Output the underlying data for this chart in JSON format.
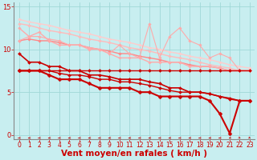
{
  "bg_color": "#c8eef0",
  "grid_color": "#a0d8d8",
  "xlabel": "Vent moyen/en rafales ( km/h )",
  "xlabel_color": "#cc0000",
  "xlabel_fontsize": 7.5,
  "tick_color": "#cc0000",
  "tick_fontsize": 5.5,
  "xlim": [
    -0.5,
    23.5
  ],
  "ylim": [
    -0.5,
    15.5
  ],
  "yticks": [
    0,
    5,
    10,
    15
  ],
  "xticks": [
    0,
    1,
    2,
    3,
    4,
    5,
    6,
    7,
    8,
    9,
    10,
    11,
    12,
    13,
    14,
    15,
    16,
    17,
    18,
    19,
    20,
    21,
    22,
    23
  ],
  "lines": [
    {
      "x": [
        0,
        1,
        2,
        3,
        4,
        5,
        6,
        7,
        8,
        9,
        10,
        11,
        12,
        13,
        14,
        15,
        16,
        17,
        18,
        19,
        20,
        21,
        22,
        23
      ],
      "y": [
        7.5,
        7.5,
        7.5,
        7.5,
        7.5,
        7.5,
        7.5,
        7.5,
        7.5,
        7.5,
        7.5,
        7.5,
        7.5,
        7.5,
        7.5,
        7.5,
        7.5,
        7.5,
        7.5,
        7.5,
        7.5,
        7.5,
        7.5,
        7.5
      ],
      "color": "#cc0000",
      "lw": 1.0,
      "marker": "D",
      "ms": 2.0,
      "zorder": 4
    },
    {
      "x": [
        0,
        1,
        2,
        3,
        4,
        5,
        6,
        7,
        8,
        9,
        10,
        11,
        12,
        13,
        14,
        15,
        16,
        17,
        18,
        19,
        20,
        21,
        22,
        23
      ],
      "y": [
        7.5,
        7.5,
        7.5,
        7.5,
        7.2,
        7.0,
        7.0,
        6.8,
        6.5,
        6.5,
        6.2,
        6.2,
        6.0,
        5.8,
        5.5,
        5.2,
        5.0,
        5.0,
        5.0,
        4.8,
        4.5,
        4.3,
        4.0,
        4.0
      ],
      "color": "#cc0000",
      "lw": 1.0,
      "marker": "D",
      "ms": 2.0,
      "zorder": 4
    },
    {
      "x": [
        0,
        1,
        2,
        3,
        4,
        5,
        6,
        7,
        8,
        9,
        10,
        11,
        12,
        13,
        14,
        15,
        16,
        17,
        18,
        19,
        20,
        21,
        22,
        23
      ],
      "y": [
        7.5,
        7.5,
        7.5,
        7.0,
        6.5,
        6.5,
        6.5,
        6.0,
        5.5,
        5.5,
        5.5,
        5.5,
        5.0,
        5.0,
        4.5,
        4.5,
        4.5,
        4.5,
        4.5,
        4.0,
        2.5,
        0.2,
        4.0,
        4.0
      ],
      "color": "#cc0000",
      "lw": 1.5,
      "marker": "D",
      "ms": 2.5,
      "zorder": 5
    },
    {
      "x": [
        0,
        1,
        2,
        3,
        4,
        5,
        6,
        7,
        8,
        9,
        10,
        11,
        12,
        13,
        14,
        15,
        16,
        17,
        18,
        19,
        20,
        21,
        22,
        23
      ],
      "y": [
        9.5,
        8.5,
        8.5,
        8.0,
        8.0,
        7.5,
        7.5,
        7.0,
        7.0,
        6.8,
        6.5,
        6.5,
        6.5,
        6.2,
        6.0,
        5.5,
        5.5,
        5.0,
        5.0,
        4.8,
        4.5,
        4.2,
        4.0,
        4.0
      ],
      "color": "#cc0000",
      "lw": 1.2,
      "marker": "D",
      "ms": 2.0,
      "zorder": 4
    },
    {
      "x": [
        0,
        1,
        2,
        3,
        4,
        5,
        6,
        7,
        8,
        9,
        10,
        11,
        12,
        13,
        14,
        15,
        16,
        17,
        18,
        19,
        20,
        21,
        22,
        23
      ],
      "y": [
        11.0,
        11.2,
        11.0,
        11.0,
        10.8,
        10.5,
        10.5,
        10.2,
        10.0,
        9.8,
        9.5,
        9.5,
        9.2,
        9.0,
        8.8,
        8.5,
        8.5,
        8.2,
        8.0,
        8.0,
        7.8,
        7.5,
        7.5,
        7.5
      ],
      "color": "#ff8888",
      "lw": 1.0,
      "marker": "D",
      "ms": 1.8,
      "zorder": 3
    },
    {
      "x": [
        0,
        1,
        2,
        3,
        4,
        5,
        6,
        7,
        8,
        9,
        10,
        11,
        12,
        13,
        14,
        15,
        16,
        17,
        18,
        19,
        20,
        21,
        22,
        23
      ],
      "y": [
        12.5,
        11.5,
        12.0,
        11.0,
        10.5,
        10.5,
        10.5,
        10.0,
        10.0,
        9.5,
        9.0,
        9.0,
        9.0,
        8.5,
        8.5,
        8.5,
        8.5,
        8.0,
        8.0,
        8.0,
        7.8,
        7.5,
        7.5,
        7.5
      ],
      "color": "#ffaaaa",
      "lw": 1.0,
      "marker": "D",
      "ms": 1.8,
      "zorder": 3
    },
    {
      "x": [
        0,
        1,
        2,
        3,
        4,
        5,
        6,
        7,
        8,
        9,
        10,
        11,
        12,
        13,
        14,
        15,
        16,
        17,
        18,
        19,
        20,
        21,
        22,
        23
      ],
      "y": [
        13.0,
        12.8,
        12.5,
        12.2,
        12.0,
        11.8,
        11.5,
        11.2,
        11.0,
        10.8,
        10.5,
        10.2,
        10.0,
        9.8,
        9.5,
        9.2,
        9.0,
        8.8,
        8.5,
        8.2,
        8.0,
        7.8,
        7.5,
        7.5
      ],
      "color": "#ffbbbb",
      "lw": 1.0,
      "marker": "D",
      "ms": 1.8,
      "zorder": 2
    },
    {
      "x": [
        0,
        1,
        2,
        3,
        4,
        5,
        6,
        7,
        8,
        9,
        10,
        11,
        12,
        13,
        14,
        15,
        16,
        17,
        18,
        19,
        20,
        21,
        22,
        23
      ],
      "y": [
        13.5,
        13.2,
        13.0,
        12.8,
        12.5,
        12.2,
        12.0,
        11.8,
        11.5,
        11.2,
        11.0,
        10.8,
        10.5,
        10.2,
        10.0,
        9.7,
        9.5,
        9.2,
        9.0,
        8.8,
        8.5,
        8.2,
        8.0,
        7.8
      ],
      "color": "#ffcccc",
      "lw": 1.0,
      "marker": "D",
      "ms": 1.8,
      "zorder": 2
    },
    {
      "x": [
        0,
        1,
        2,
        3,
        4,
        5,
        6,
        7,
        8,
        9,
        10,
        11,
        12,
        13,
        14,
        15,
        16,
        17,
        18,
        19,
        20,
        21,
        22,
        23
      ],
      "y": [
        11.0,
        11.5,
        11.5,
        11.2,
        11.0,
        10.5,
        10.5,
        10.2,
        10.0,
        9.5,
        10.5,
        9.5,
        9.0,
        13.0,
        9.0,
        11.5,
        12.5,
        11.0,
        10.5,
        9.0,
        9.5,
        9.0,
        7.5,
        7.5
      ],
      "color": "#ffaaaa",
      "lw": 0.8,
      "marker": "D",
      "ms": 1.8,
      "zorder": 3
    }
  ],
  "arrow_color": "#cc0000",
  "spine_color": "#888888"
}
